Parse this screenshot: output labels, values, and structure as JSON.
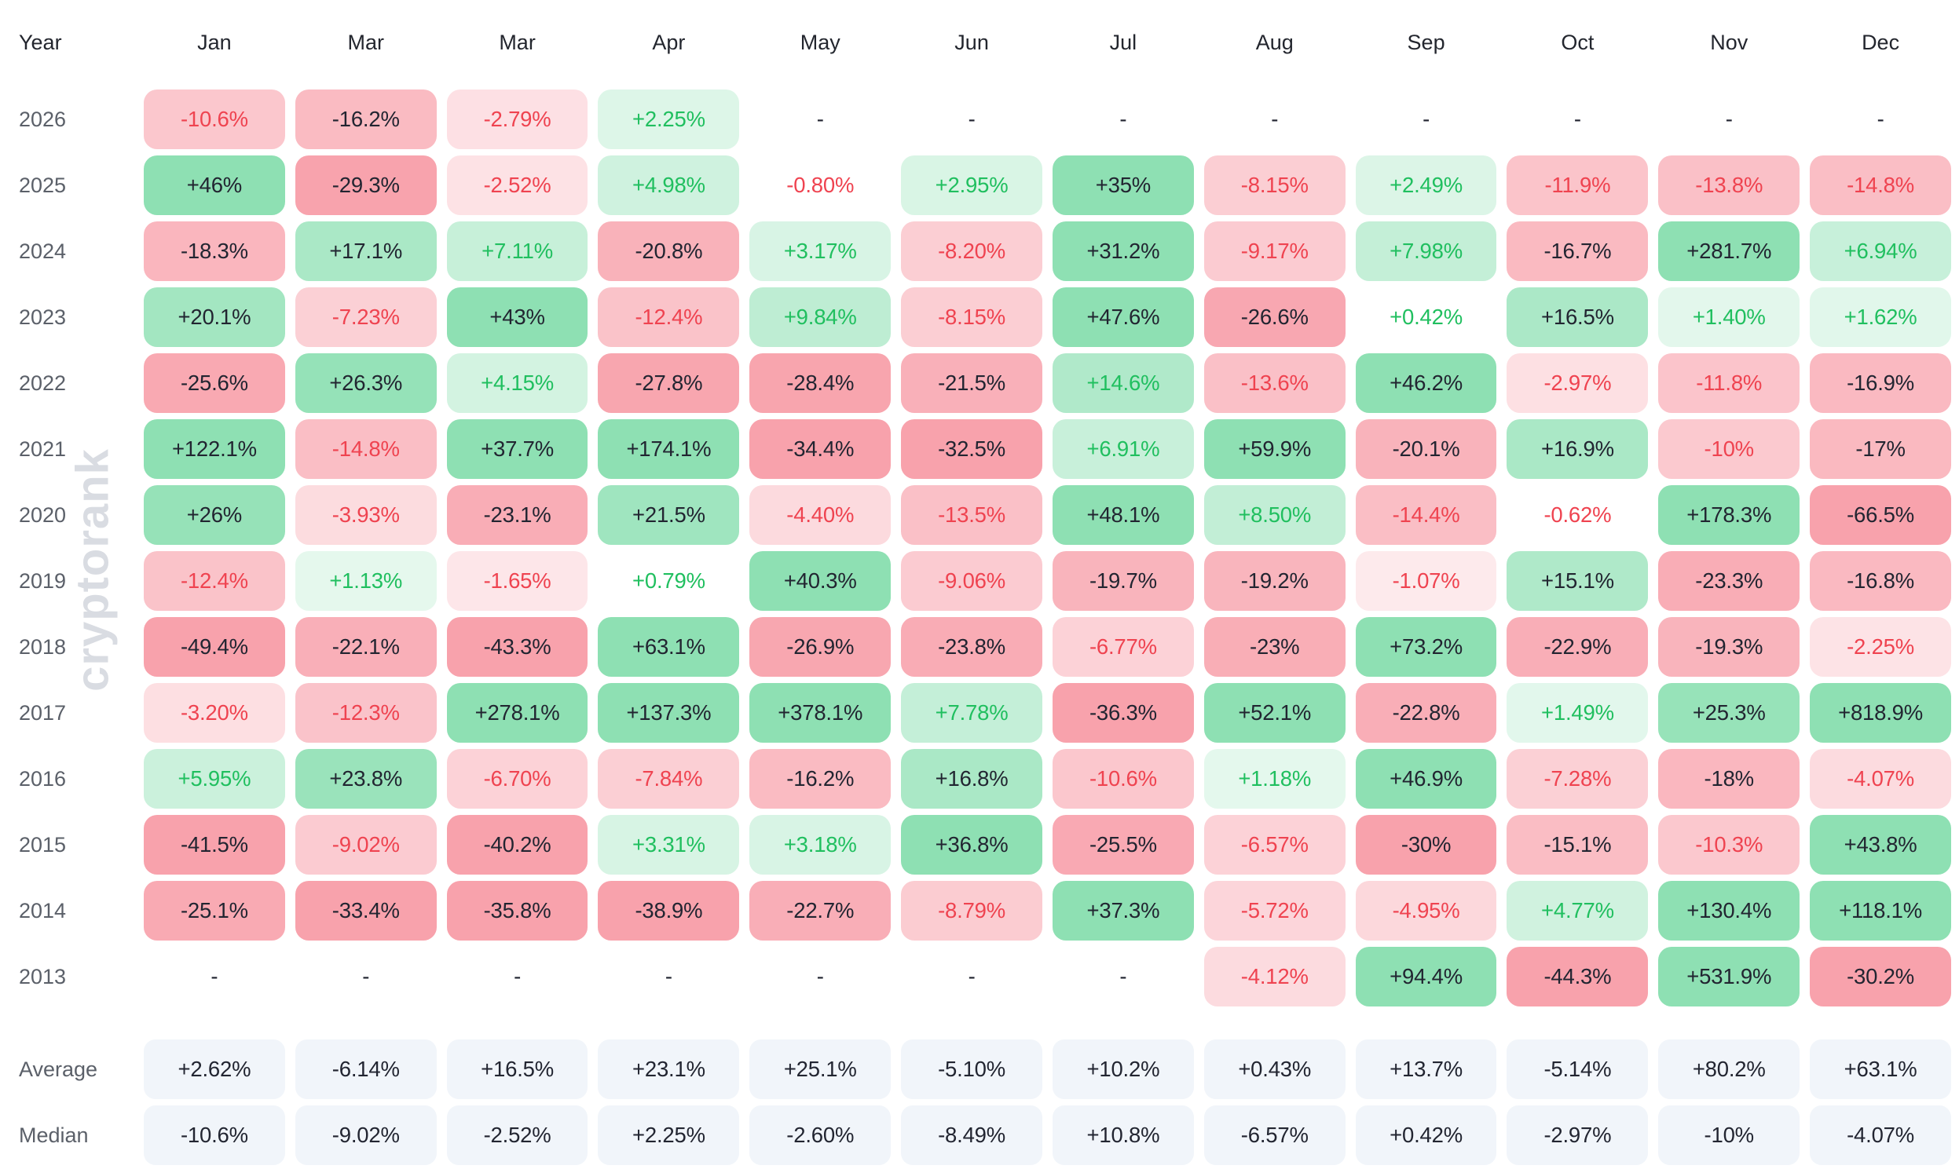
{
  "watermark": "cryptorank",
  "chart_data": {
    "type": "heatmap",
    "columns": [
      "Year",
      "Jan",
      "Mar",
      "Mar",
      "Apr",
      "May",
      "Jun",
      "Jul",
      "Aug",
      "Sep",
      "Oct",
      "Nov",
      "Dec"
    ],
    "rows": [
      {
        "year": "2026",
        "values": [
          "-10.6%",
          "-16.2%",
          "-2.79%",
          "+2.25%",
          "-",
          "-",
          "-",
          "-",
          "-",
          "-",
          "-",
          "-"
        ]
      },
      {
        "year": "2025",
        "values": [
          "+46%",
          "-29.3%",
          "-2.52%",
          "+4.98%",
          "-0.80%",
          "+2.95%",
          "+35%",
          "-8.15%",
          "+2.49%",
          "-11.9%",
          "-13.8%",
          "-14.8%"
        ]
      },
      {
        "year": "2024",
        "values": [
          "-18.3%",
          "+17.1%",
          "+7.11%",
          "-20.8%",
          "+3.17%",
          "-8.20%",
          "+31.2%",
          "-9.17%",
          "+7.98%",
          "-16.7%",
          "+281.7%",
          "+6.94%"
        ]
      },
      {
        "year": "2023",
        "values": [
          "+20.1%",
          "-7.23%",
          "+43%",
          "-12.4%",
          "+9.84%",
          "-8.15%",
          "+47.6%",
          "-26.6%",
          "+0.42%",
          "+16.5%",
          "+1.40%",
          "+1.62%"
        ]
      },
      {
        "year": "2022",
        "values": [
          "-25.6%",
          "+26.3%",
          "+4.15%",
          "-27.8%",
          "-28.4%",
          "-21.5%",
          "+14.6%",
          "-13.6%",
          "+46.2%",
          "-2.97%",
          "-11.8%",
          "-16.9%"
        ]
      },
      {
        "year": "2021",
        "values": [
          "+122.1%",
          "-14.8%",
          "+37.7%",
          "+174.1%",
          "-34.4%",
          "-32.5%",
          "+6.91%",
          "+59.9%",
          "-20.1%",
          "+16.9%",
          "-10%",
          "-17%"
        ]
      },
      {
        "year": "2020",
        "values": [
          "+26%",
          "-3.93%",
          "-23.1%",
          "+21.5%",
          "-4.40%",
          "-13.5%",
          "+48.1%",
          "+8.50%",
          "-14.4%",
          "-0.62%",
          "+178.3%",
          "-66.5%"
        ]
      },
      {
        "year": "2019",
        "values": [
          "-12.4%",
          "+1.13%",
          "-1.65%",
          "+0.79%",
          "+40.3%",
          "-9.06%",
          "-19.7%",
          "-19.2%",
          "-1.07%",
          "+15.1%",
          "-23.3%",
          "-16.8%"
        ]
      },
      {
        "year": "2018",
        "values": [
          "-49.4%",
          "-22.1%",
          "-43.3%",
          "+63.1%",
          "-26.9%",
          "-23.8%",
          "-6.77%",
          "-23%",
          "+73.2%",
          "-22.9%",
          "-19.3%",
          "-2.25%"
        ]
      },
      {
        "year": "2017",
        "values": [
          "-3.20%",
          "-12.3%",
          "+278.1%",
          "+137.3%",
          "+378.1%",
          "+7.78%",
          "-36.3%",
          "+52.1%",
          "-22.8%",
          "+1.49%",
          "+25.3%",
          "+818.9%"
        ]
      },
      {
        "year": "2016",
        "values": [
          "+5.95%",
          "+23.8%",
          "-6.70%",
          "-7.84%",
          "-16.2%",
          "+16.8%",
          "-10.6%",
          "+1.18%",
          "+46.9%",
          "-7.28%",
          "-18%",
          "-4.07%"
        ]
      },
      {
        "year": "2015",
        "values": [
          "-41.5%",
          "-9.02%",
          "-40.2%",
          "+3.31%",
          "+3.18%",
          "+36.8%",
          "-25.5%",
          "-6.57%",
          "-30%",
          "-15.1%",
          "-10.3%",
          "+43.8%"
        ]
      },
      {
        "year": "2014",
        "values": [
          "-25.1%",
          "-33.4%",
          "-35.8%",
          "-38.9%",
          "-22.7%",
          "-8.79%",
          "+37.3%",
          "-5.72%",
          "-4.95%",
          "+4.77%",
          "+130.4%",
          "+118.1%"
        ]
      },
      {
        "year": "2013",
        "values": [
          "-",
          "-",
          "-",
          "-",
          "-",
          "-",
          "-",
          "-4.12%",
          "+94.4%",
          "-44.3%",
          "+531.9%",
          "-30.2%"
        ]
      }
    ],
    "summary_rows": [
      {
        "label": "Average",
        "values": [
          "+2.62%",
          "-6.14%",
          "+16.5%",
          "+23.1%",
          "+25.1%",
          "-5.10%",
          "+10.2%",
          "+0.43%",
          "+13.7%",
          "-5.14%",
          "+80.2%",
          "+63.1%"
        ]
      },
      {
        "label": "Median",
        "values": [
          "-10.6%",
          "-9.02%",
          "-2.52%",
          "+2.25%",
          "-2.60%",
          "-8.49%",
          "+10.8%",
          "-6.57%",
          "+0.42%",
          "-2.97%",
          "-10%",
          "-4.07%"
        ]
      }
    ],
    "layout": {
      "grid": false,
      "legend": "none",
      "color_scale_saturation_abs_pct": 30,
      "dark_text_threshold_abs_pct": 15,
      "white_bg_threshold_abs_pct": 1
    },
    "colors": {
      "positive_strong_bg": "#8ee0b3",
      "negative_strong_bg": "#f8a2ac",
      "positive_text": "#20bf5f",
      "negative_text": "#ef4350",
      "dark_text": "#222531",
      "summary_bg": "#f1f5fa",
      "label_gray": "#5b6069",
      "header_text": "#23262e",
      "watermark_gray": "#d9dce2",
      "background": "#ffffff"
    }
  }
}
